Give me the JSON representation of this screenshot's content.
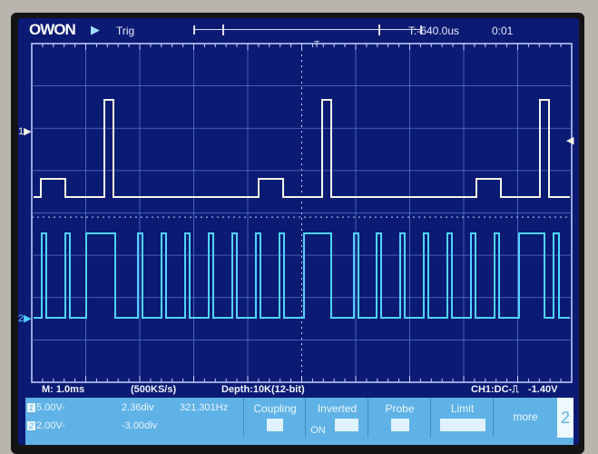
{
  "header": {
    "brand": "OWON",
    "run_state_icon": "play-icon",
    "trigger_status": "Trig",
    "trigger_time": "T:-640.0us",
    "clock": "0:01"
  },
  "status": {
    "timebase": "M: 1.0ms",
    "sample_rate": "(500KS/s)",
    "depth": "Depth:10K(12-bit)",
    "trigger_info": "CH1:DC-",
    "trigger_edge_icon": "rising-edge-icon",
    "trigger_level": "-1.40V"
  },
  "channels": [
    {
      "num": "1",
      "scale": "5.00V-",
      "offset": "2.36div",
      "frequency": "321.301Hz",
      "color": "#f4f6e8"
    },
    {
      "num": "2",
      "scale": "2.00V-",
      "offset": "-3.00div",
      "color": "#4fd4ff"
    }
  ],
  "menu": {
    "coupling": "Coupling",
    "inverted": "Inverted",
    "inverted_value": "ON",
    "probe": "Probe",
    "limit": "Limit",
    "more": "more",
    "page": "2"
  },
  "colors": {
    "screen": "#0b1a73",
    "menu": "#5fb2e6",
    "grid": "#5577cc"
  }
}
